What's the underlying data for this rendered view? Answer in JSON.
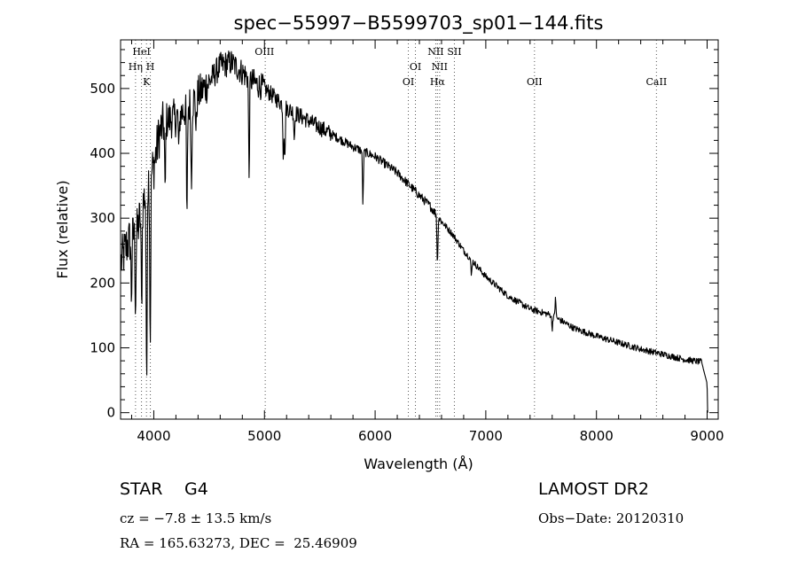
{
  "chart_data": {
    "type": "line",
    "title": "spec−55997−B5599703_sp01−144.fits",
    "xlabel": "Wavelength (Å)",
    "ylabel": "Flux (relative)",
    "xlim": [
      3700,
      9100
    ],
    "ylim": [
      -10,
      575
    ],
    "xticks": [
      4000,
      5000,
      6000,
      7000,
      8000,
      9000
    ],
    "yticks": [
      0,
      100,
      200,
      300,
      400,
      500
    ],
    "grid": false,
    "line_color": "#000000",
    "line_markers": [
      {
        "x": 3835,
        "labels": [
          "Hη"
        ]
      },
      {
        "x": 3889,
        "labels": [
          "HeI"
        ]
      },
      {
        "x": 3934,
        "labels": [
          "K"
        ]
      },
      {
        "x": 3969,
        "labels": [
          "H"
        ]
      },
      {
        "x": 5007,
        "labels": [
          "OIII"
        ]
      },
      {
        "x": 6300,
        "labels": [
          "OI"
        ]
      },
      {
        "x": 6364,
        "labels": [
          "OI"
        ]
      },
      {
        "x": 6548,
        "labels": [
          "NII"
        ]
      },
      {
        "x": 6563,
        "labels": [
          "Hα"
        ]
      },
      {
        "x": 6583,
        "labels": [
          "NII"
        ]
      },
      {
        "x": 6716,
        "labels": [
          "SII"
        ]
      },
      {
        "x": 7440,
        "labels": [
          "OII"
        ]
      },
      {
        "x": 8542,
        "labels": [
          "CaII"
        ]
      }
    ],
    "marker_labels": [
      {
        "text": "HeI",
        "x": 3889,
        "row": 0
      },
      {
        "text": "Hη",
        "x": 3835,
        "row": 1
      },
      {
        "text": "H",
        "x": 3969,
        "row": 1
      },
      {
        "text": "K",
        "x": 3934,
        "row": 2
      },
      {
        "text": "OIII",
        "x": 5000,
        "row": 0
      },
      {
        "text": "OI",
        "x": 6364,
        "row": 1
      },
      {
        "text": "OI",
        "x": 6300,
        "row": 2
      },
      {
        "text": "NII",
        "x": 6548,
        "row": 0
      },
      {
        "text": "SII",
        "x": 6716,
        "row": 0
      },
      {
        "text": "NII",
        "x": 6583,
        "row": 1
      },
      {
        "text": "Hα",
        "x": 6563,
        "row": 2
      },
      {
        "text": "OII",
        "x": 7440,
        "row": 2
      },
      {
        "text": "CaII",
        "x": 8542,
        "row": 2
      }
    ],
    "continuum": {
      "x": [
        3700,
        3760,
        3800,
        3850,
        3900,
        3950,
        4000,
        4050,
        4100,
        4200,
        4300,
        4400,
        4500,
        4600,
        4700,
        4800,
        4900,
        5000,
        5200,
        5400,
        5600,
        5800,
        6000,
        6200,
        6400,
        6500,
        6600,
        6700,
        6800,
        7000,
        7200,
        7400,
        7600,
        7800,
        8000,
        8200,
        8400,
        8600,
        8800,
        8950,
        9000,
        9005
      ],
      "y": [
        230,
        260,
        270,
        280,
        320,
        360,
        380,
        430,
        450,
        455,
        470,
        490,
        510,
        535,
        540,
        525,
        510,
        500,
        470,
        450,
        430,
        410,
        395,
        370,
        335,
        318,
        295,
        275,
        250,
        210,
        180,
        160,
        150,
        130,
        118,
        108,
        98,
        90,
        82,
        78,
        45,
        0
      ]
    },
    "absorption_features": [
      {
        "x": 3935,
        "depth": 320
      },
      {
        "x": 3968,
        "depth": 260
      },
      {
        "x": 3890,
        "depth": 150
      },
      {
        "x": 3835,
        "depth": 110
      },
      {
        "x": 3798,
        "depth": 90
      },
      {
        "x": 4102,
        "depth": 120
      },
      {
        "x": 4227,
        "depth": 60
      },
      {
        "x": 4300,
        "depth": 180
      },
      {
        "x": 4340,
        "depth": 130
      },
      {
        "x": 4383,
        "depth": 55
      },
      {
        "x": 4861,
        "depth": 150
      },
      {
        "x": 5170,
        "depth": 75
      },
      {
        "x": 5184,
        "depth": 85
      },
      {
        "x": 5270,
        "depth": 40
      },
      {
        "x": 5890,
        "depth": 80
      },
      {
        "x": 6563,
        "depth": 75
      },
      {
        "x": 6870,
        "depth": 25
      },
      {
        "x": 7600,
        "depth": 20
      }
    ],
    "emission_features": [
      {
        "x": 7630,
        "height": 35
      }
    ]
  },
  "info": {
    "object_class": "STAR",
    "subclass": "G4",
    "survey": "LAMOST DR2",
    "redshift": "cz = −7.8 ± 13.5 km/s",
    "obs_date": "Obs−Date: 20120310",
    "coordinates": "RA = 165.63273, DEC =  25.46909"
  }
}
